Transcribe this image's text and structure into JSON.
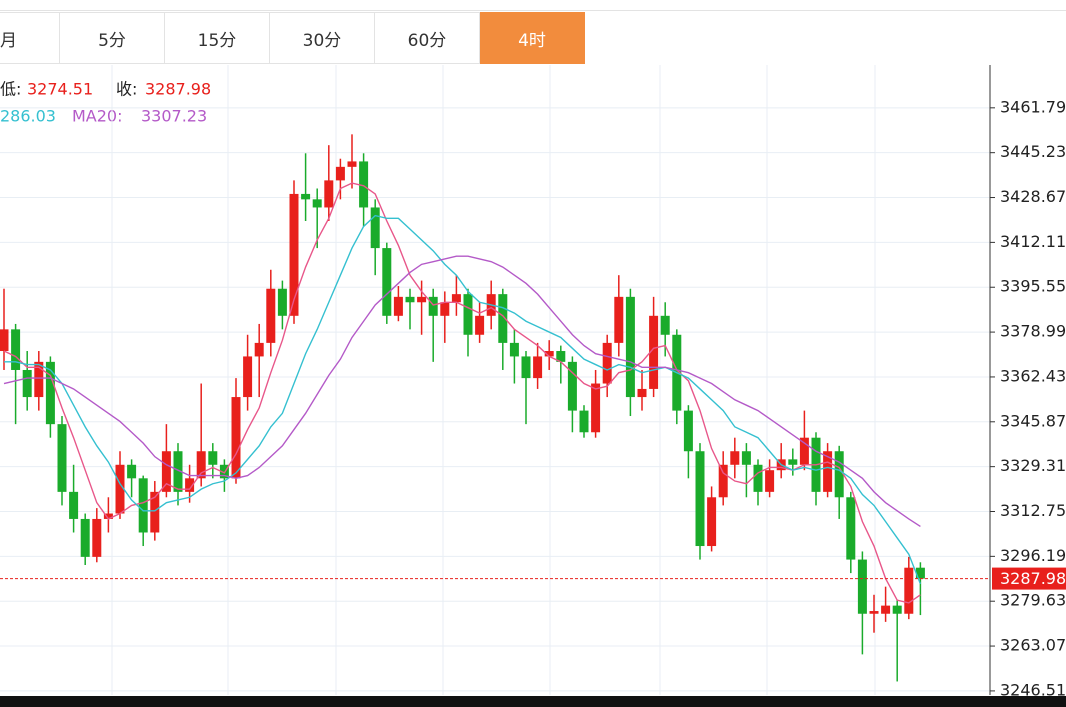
{
  "tabs": [
    "月",
    "5分",
    "15分",
    "30分",
    "60分",
    "4时"
  ],
  "active_tab": 5,
  "info": {
    "low_label": "低:",
    "close_label": "收:",
    "ma10_partial": "286.03"
  },
  "chart_data": {
    "type": "candlestick",
    "up_color": "#e8201c",
    "down_color": "#1aab2b",
    "ylim": [
      3245,
      3477.6
    ],
    "yticks": [
      3461.79,
      3445.23,
      3428.67,
      3412.11,
      3395.55,
      3378.99,
      3362.43,
      3345.87,
      3329.31,
      3312.75,
      3296.19,
      3279.63,
      3263.07,
      3246.51
    ],
    "grid": true,
    "candles": [
      [
        3372,
        3395,
        3365,
        3380
      ],
      [
        3380,
        3382,
        3345,
        3365
      ],
      [
        3365,
        3372,
        3350,
        3355
      ],
      [
        3355,
        3372,
        3350,
        3368
      ],
      [
        3368,
        3370,
        3340,
        3345
      ],
      [
        3345,
        3348,
        3315,
        3320
      ],
      [
        3320,
        3330,
        3305,
        3310
      ],
      [
        3310,
        3312,
        3293,
        3296
      ],
      [
        3296,
        3314,
        3294,
        3310
      ],
      [
        3310,
        3318,
        3305,
        3312
      ],
      [
        3312,
        3335,
        3310,
        3330
      ],
      [
        3330,
        3332,
        3318,
        3325
      ],
      [
        3325,
        3326,
        3300,
        3305
      ],
      [
        3305,
        3324,
        3302,
        3320
      ],
      [
        3320,
        3345,
        3318,
        3335
      ],
      [
        3335,
        3338,
        3315,
        3320
      ],
      [
        3320,
        3330,
        3316,
        3325
      ],
      [
        3325,
        3360,
        3322,
        3335
      ],
      [
        3335,
        3338,
        3325,
        3330
      ],
      [
        3330,
        3332,
        3320,
        3325
      ],
      [
        3325,
        3362,
        3323,
        3355
      ],
      [
        3355,
        3378,
        3350,
        3370
      ],
      [
        3370,
        3382,
        3355,
        3375
      ],
      [
        3375,
        3402,
        3370,
        3395
      ],
      [
        3395,
        3398,
        3380,
        3385
      ],
      [
        3385,
        3435,
        3382,
        3430
      ],
      [
        3430,
        3445,
        3420,
        3428
      ],
      [
        3428,
        3432,
        3410,
        3425
      ],
      [
        3425,
        3448,
        3420,
        3435
      ],
      [
        3435,
        3443,
        3428,
        3440
      ],
      [
        3440,
        3452,
        3432,
        3442
      ],
      [
        3442,
        3445,
        3418,
        3425
      ],
      [
        3425,
        3428,
        3400,
        3410
      ],
      [
        3410,
        3412,
        3382,
        3385
      ],
      [
        3385,
        3396,
        3383,
        3392
      ],
      [
        3392,
        3395,
        3380,
        3390
      ],
      [
        3390,
        3398,
        3378,
        3392
      ],
      [
        3392,
        3395,
        3368,
        3385
      ],
      [
        3385,
        3394,
        3375,
        3390
      ],
      [
        3390,
        3400,
        3385,
        3393
      ],
      [
        3393,
        3395,
        3370,
        3378
      ],
      [
        3378,
        3390,
        3375,
        3385
      ],
      [
        3385,
        3398,
        3380,
        3393
      ],
      [
        3393,
        3395,
        3365,
        3375
      ],
      [
        3375,
        3380,
        3360,
        3370
      ],
      [
        3370,
        3372,
        3345,
        3362
      ],
      [
        3362,
        3375,
        3358,
        3370
      ],
      [
        3370,
        3376,
        3365,
        3372
      ],
      [
        3372,
        3374,
        3360,
        3368
      ],
      [
        3368,
        3370,
        3342,
        3350
      ],
      [
        3350,
        3352,
        3340,
        3342
      ],
      [
        3342,
        3365,
        3340,
        3360
      ],
      [
        3360,
        3378,
        3355,
        3375
      ],
      [
        3375,
        3400,
        3370,
        3392
      ],
      [
        3392,
        3395,
        3348,
        3355
      ],
      [
        3355,
        3365,
        3350,
        3358
      ],
      [
        3358,
        3392,
        3355,
        3385
      ],
      [
        3385,
        3390,
        3370,
        3378
      ],
      [
        3378,
        3380,
        3345,
        3350
      ],
      [
        3350,
        3352,
        3325,
        3335
      ],
      [
        3335,
        3338,
        3295,
        3300
      ],
      [
        3300,
        3322,
        3298,
        3318
      ],
      [
        3318,
        3335,
        3315,
        3330
      ],
      [
        3330,
        3340,
        3325,
        3335
      ],
      [
        3335,
        3338,
        3318,
        3330
      ],
      [
        3330,
        3332,
        3315,
        3320
      ],
      [
        3320,
        3332,
        3318,
        3328
      ],
      [
        3328,
        3338,
        3325,
        3332
      ],
      [
        3332,
        3336,
        3326,
        3330
      ],
      [
        3330,
        3350,
        3328,
        3340
      ],
      [
        3340,
        3342,
        3315,
        3320
      ],
      [
        3320,
        3338,
        3318,
        3335
      ],
      [
        3335,
        3337,
        3310,
        3318
      ],
      [
        3318,
        3320,
        3290,
        3295
      ],
      [
        3295,
        3298,
        3260,
        3275
      ],
      [
        3275,
        3282,
        3268,
        3276
      ],
      [
        3275,
        3285,
        3272,
        3278
      ],
      [
        3278,
        3280,
        3250,
        3275
      ],
      [
        3275,
        3296,
        3273,
        3292
      ],
      [
        3292,
        3294,
        3274.51,
        3287.98
      ]
    ],
    "series": [
      {
        "color": "#e8578a",
        "values": [
          3372,
          3370,
          3366,
          3366,
          3363,
          3351,
          3340,
          3328,
          3316,
          3310,
          3312,
          3315,
          3316,
          3318,
          3323,
          3321,
          3321,
          3327,
          3329,
          3327,
          3334,
          3343,
          3351,
          3364,
          3376,
          3391,
          3403,
          3413,
          3421,
          3432,
          3434,
          3433,
          3430,
          3420,
          3411,
          3400,
          3394,
          3389,
          3390,
          3390,
          3388,
          3386,
          3388,
          3385,
          3380,
          3377,
          3374,
          3370,
          3368,
          3364,
          3360,
          3358,
          3359,
          3364,
          3365,
          3368,
          3373,
          3374,
          3365,
          3361,
          3350,
          3336,
          3327,
          3324,
          3323,
          3327,
          3329,
          3329,
          3328,
          3330,
          3330,
          3331,
          3329,
          3322,
          3309,
          3300,
          3288,
          3280,
          3279,
          3282
        ]
      },
      {
        "color": "#35c0d0",
        "values": [
          3368,
          3368,
          3367,
          3367,
          3365,
          3360,
          3352,
          3344,
          3337,
          3331,
          3323,
          3317,
          3313,
          3313,
          3316,
          3317,
          3318,
          3321,
          3323,
          3324,
          3327,
          3332,
          3337,
          3344,
          3349,
          3360,
          3371,
          3380,
          3390,
          3400,
          3410,
          3418,
          3422,
          3421,
          3421,
          3417,
          3413,
          3409,
          3404,
          3400,
          3394,
          3390,
          3389,
          3388,
          3386,
          3383,
          3381,
          3379,
          3377,
          3373,
          3369,
          3367,
          3365,
          3367,
          3366,
          3364,
          3365,
          3366,
          3364,
          3362,
          3358,
          3354,
          3350,
          3344,
          3342,
          3340,
          3335,
          3330,
          3328,
          3329,
          3328,
          3329,
          3328,
          3325,
          3319,
          3315,
          3309,
          3303,
          3297,
          3286.03
        ]
      },
      {
        "name": "MA20:",
        "color": "#b45ac8",
        "values": [
          3360,
          3361,
          3362,
          3362,
          3362,
          3360,
          3358,
          3355,
          3352,
          3349,
          3346,
          3342,
          3338,
          3333,
          3330,
          3328,
          3326,
          3326,
          3326,
          3326,
          3325,
          3326,
          3329,
          3333,
          3337,
          3343,
          3349,
          3356,
          3363,
          3369,
          3377,
          3383,
          3389,
          3393,
          3397,
          3401,
          3404,
          3405,
          3406,
          3407,
          3407,
          3406,
          3405,
          3403,
          3400,
          3397,
          3393,
          3388,
          3383,
          3378,
          3374,
          3371,
          3370,
          3369,
          3368,
          3366,
          3366,
          3366,
          3365,
          3364,
          3362,
          3360,
          3357,
          3354,
          3352,
          3350,
          3347,
          3344,
          3341,
          3338,
          3335,
          3333,
          3331,
          3328,
          3325,
          3320,
          3316,
          3313,
          3310,
          3307.23
        ]
      }
    ]
  }
}
